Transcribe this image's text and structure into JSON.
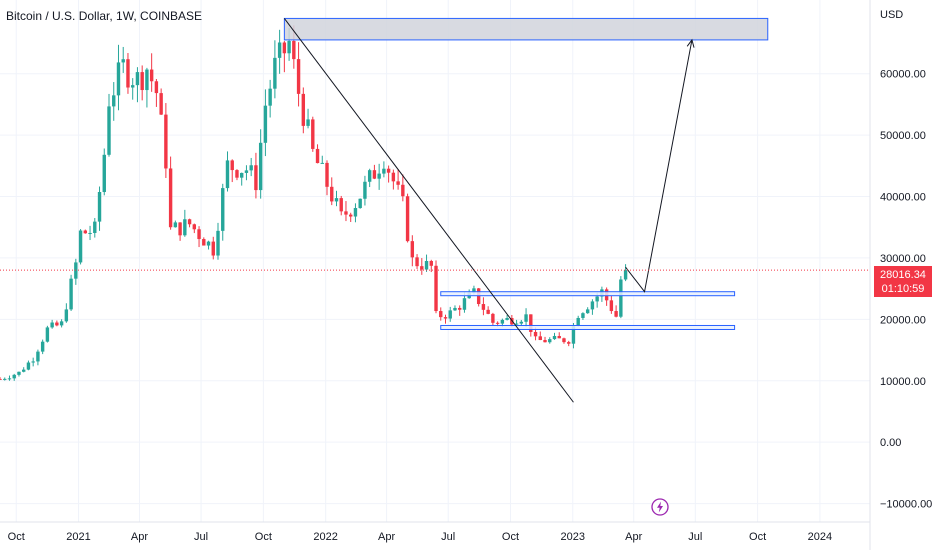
{
  "header": {
    "title": "Bitcoin / U.S. Dollar, 1W, COINBASE",
    "currency": "USD"
  },
  "price_badge": {
    "price": "28016.34",
    "countdown": "01:10:59",
    "color": "#f23645"
  },
  "colors": {
    "up": "#26a69a",
    "down": "#f23645",
    "zone_fill": "#d1d4dc",
    "zone_border": "#2962ff",
    "grid": "#f0f3fa",
    "text": "#131722"
  },
  "icons": {
    "alert": "lightning-bolt-icon"
  },
  "chart_data": {
    "type": "candlestick",
    "symbol": "Bitcoin / U.S. Dollar",
    "interval": "1W",
    "exchange": "COINBASE",
    "ylim": [
      -13000,
      72000
    ],
    "xlim": [
      "2020-09-07",
      "2024-03-15"
    ],
    "y_ticks": [
      "−10000.00",
      "0.00",
      "10000.00",
      "20000.00",
      "30000.00",
      "40000.00",
      "50000.00",
      "60000.00"
    ],
    "x_ticks": [
      {
        "label": "Oct",
        "date": "2020-10-01"
      },
      {
        "label": "2021",
        "date": "2021-01-01"
      },
      {
        "label": "Apr",
        "date": "2021-04-01"
      },
      {
        "label": "Jul",
        "date": "2021-07-01"
      },
      {
        "label": "Oct",
        "date": "2021-10-01"
      },
      {
        "label": "2022",
        "date": "2022-01-01"
      },
      {
        "label": "Apr",
        "date": "2022-04-01"
      },
      {
        "label": "Jul",
        "date": "2022-07-01"
      },
      {
        "label": "Oct",
        "date": "2022-10-01"
      },
      {
        "label": "2023",
        "date": "2023-01-01"
      },
      {
        "label": "Apr",
        "date": "2023-04-01"
      },
      {
        "label": "Jul",
        "date": "2023-07-01"
      },
      {
        "label": "Oct",
        "date": "2023-10-01"
      },
      {
        "label": "2024",
        "date": "2024-01-01"
      }
    ],
    "current_price": 28016.34,
    "close_path": [
      [
        "2020-09-07",
        10300
      ],
      [
        "2020-10-05",
        11300
      ],
      [
        "2020-10-26",
        13700
      ],
      [
        "2020-11-16",
        18400
      ],
      [
        "2020-12-07",
        19200
      ],
      [
        "2020-12-28",
        29000
      ],
      [
        "2021-01-04",
        34000
      ],
      [
        "2021-01-25",
        34500
      ],
      [
        "2021-02-08",
        47000
      ],
      [
        "2021-02-15",
        56000
      ],
      [
        "2021-03-08",
        61000
      ],
      [
        "2021-03-29",
        59000
      ],
      [
        "2021-04-12",
        61000
      ],
      [
        "2021-04-26",
        57000
      ],
      [
        "2021-05-10",
        46000
      ],
      [
        "2021-05-17",
        34500
      ],
      [
        "2021-06-14",
        35500
      ],
      [
        "2021-07-19",
        31500
      ],
      [
        "2021-08-09",
        45000
      ],
      [
        "2021-09-06",
        44500
      ],
      [
        "2021-09-20",
        42500
      ],
      [
        "2021-10-04",
        55000
      ],
      [
        "2021-10-18",
        61000
      ],
      [
        "2021-11-08",
        65000
      ],
      [
        "2021-11-22",
        57000
      ],
      [
        "2021-12-13",
        47000
      ],
      [
        "2022-01-03",
        42000
      ],
      [
        "2022-01-24",
        36500
      ],
      [
        "2022-02-14",
        39000
      ],
      [
        "2022-03-28",
        46500
      ],
      [
        "2022-04-25",
        38500
      ],
      [
        "2022-05-09",
        29500
      ],
      [
        "2022-06-06",
        28500
      ],
      [
        "2022-06-13",
        20500
      ],
      [
        "2022-07-04",
        21000
      ],
      [
        "2022-08-08",
        24200
      ],
      [
        "2022-09-05",
        19500
      ],
      [
        "2022-10-24",
        20500
      ],
      [
        "2022-11-07",
        16500
      ],
      [
        "2022-12-26",
        16700
      ],
      [
        "2023-01-09",
        21000
      ],
      [
        "2023-02-13",
        24500
      ],
      [
        "2023-03-06",
        20500
      ],
      [
        "2023-03-13",
        26500
      ],
      [
        "2023-03-20",
        28016
      ]
    ],
    "annotations": {
      "target_zone": {
        "x_start": "2021-11-01",
        "x_end": "2023-10-16",
        "y_low": 65500,
        "y_high": 69000
      },
      "upper_range": {
        "x_start": "2022-06-20",
        "x_end": "2023-08-28",
        "y_low": 24000,
        "y_high": 24500
      },
      "lower_range": {
        "x_start": "2022-06-20",
        "x_end": "2023-08-28",
        "y_low": 18500,
        "y_high": 19000
      },
      "trendline": {
        "start": [
          "2021-11-01",
          69000
        ],
        "end": [
          "2023-01-02",
          6500
        ]
      },
      "projection": [
        [
          "2023-03-20",
          28500
        ],
        [
          "2023-04-17",
          24500
        ],
        [
          "2023-06-26",
          65500
        ]
      ]
    }
  }
}
